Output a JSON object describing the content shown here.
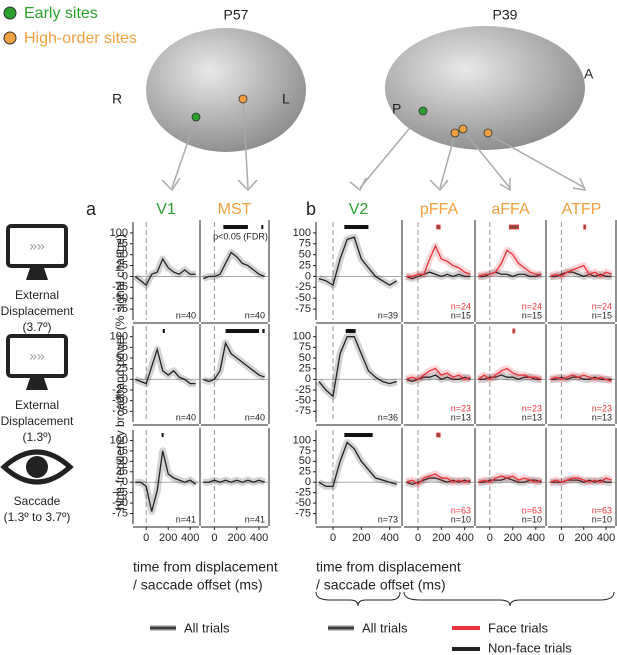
{
  "legend_top": {
    "early": "Early sites",
    "early_color": "#2ca02c",
    "high": "High-order sites",
    "high_color": "#f0a040"
  },
  "brains": {
    "left_title": "P57",
    "right_title": "P39",
    "R": "R",
    "L": "L",
    "A": "A",
    "P": "P"
  },
  "panel_labels": {
    "a": "a",
    "b": "b"
  },
  "conditions": [
    {
      "lines": [
        "External",
        "Displacement",
        "(3.7º)"
      ]
    },
    {
      "lines": [
        "External",
        "Displacement",
        "(1.3º)"
      ]
    },
    {
      "lines": [
        "Saccade",
        "(1.3º to 3.7º)"
      ]
    }
  ],
  "y_label": "high-frequency broadband power (% signal change)",
  "x_label_a": [
    "time from displacement",
    "/ saccade offset (ms)"
  ],
  "x_label_b": [
    "time from displacement",
    "/ saccade offset (ms)"
  ],
  "annotation": "p<0.05 (FDR)",
  "axes": {
    "x": [
      -100,
      -50,
      0,
      50,
      100,
      150,
      200,
      250,
      300,
      350,
      400,
      450
    ],
    "xlim": [
      -120,
      480
    ],
    "xticks": [
      0,
      200,
      400
    ],
    "ylim": [
      -100,
      125
    ],
    "yticks": [
      100,
      75,
      50,
      25,
      0,
      -25,
      -50,
      -75
    ]
  },
  "columns": [
    {
      "title": "V1",
      "color": "#2ca02c",
      "rows": [
        {
          "series": [
            {
              "name": "All trials",
              "color": "#222222",
              "values": [
                0,
                -10,
                -20,
                5,
                10,
                40,
                20,
                10,
                5,
                15,
                5,
                5
              ]
            }
          ],
          "n_labels": [
            {
              "text": "n=40",
              "color": "#222222"
            }
          ],
          "sig": []
        },
        {
          "series": [
            {
              "name": "All trials",
              "color": "#222222",
              "values": [
                0,
                -5,
                -10,
                30,
                70,
                20,
                10,
                20,
                5,
                0,
                -10,
                -10
              ]
            }
          ],
          "n_labels": [
            {
              "text": "n=40",
              "color": "#222222"
            }
          ],
          "sig": [
            [
              150,
              170
            ]
          ]
        },
        {
          "series": [
            {
              "name": "All trials",
              "color": "#222222",
              "values": [
                0,
                0,
                -10,
                -70,
                -20,
                75,
                20,
                10,
                5,
                0,
                5,
                -5
              ]
            }
          ],
          "n_labels": [
            {
              "text": "n=41",
              "color": "#222222"
            }
          ],
          "sig": [
            [
              140,
              150
            ]
          ]
        }
      ]
    },
    {
      "title": "MST",
      "color": "#f0a040",
      "rows": [
        {
          "series": [
            {
              "name": "All trials",
              "color": "#222222",
              "values": [
                -5,
                0,
                0,
                5,
                30,
                55,
                45,
                30,
                25,
                15,
                5,
                0
              ]
            }
          ],
          "n_labels": [
            {
              "text": "n=40",
              "color": "#222222"
            }
          ],
          "sig": [
            [
              80,
              300
            ],
            [
              420,
              430
            ]
          ]
        },
        {
          "series": [
            {
              "name": "All trials",
              "color": "#222222",
              "values": [
                0,
                -5,
                0,
                20,
                85,
                60,
                50,
                40,
                30,
                20,
                10,
                5
              ]
            }
          ],
          "n_labels": [
            {
              "text": "n=40",
              "color": "#222222"
            }
          ],
          "sig": [
            [
              100,
              400
            ],
            [
              430,
              450
            ]
          ]
        },
        {
          "series": [
            {
              "name": "All trials",
              "color": "#222222",
              "values": [
                0,
                0,
                5,
                0,
                5,
                0,
                5,
                0,
                5,
                0,
                5,
                0
              ]
            }
          ],
          "n_labels": [
            {
              "text": "n=41",
              "color": "#222222"
            }
          ],
          "sig": []
        }
      ]
    },
    {
      "title": "V2",
      "color": "#2ca02c",
      "rows": [
        {
          "series": [
            {
              "name": "All trials",
              "color": "#222222",
              "values": [
                -5,
                -10,
                -20,
                40,
                85,
                90,
                40,
                20,
                0,
                -10,
                -20,
                -10
              ]
            }
          ],
          "n_labels": [
            {
              "text": "n=39",
              "color": "#222222"
            }
          ],
          "sig": [
            [
              80,
              250
            ]
          ]
        },
        {
          "series": [
            {
              "name": "All trials",
              "color": "#222222",
              "values": [
                -5,
                -25,
                -40,
                60,
                100,
                100,
                60,
                20,
                5,
                -5,
                -10,
                -5
              ]
            }
          ],
          "n_labels": [
            {
              "text": "n=36",
              "color": "#222222"
            }
          ],
          "sig": [
            [
              90,
              160
            ]
          ]
        },
        {
          "series": [
            {
              "name": "All trials",
              "color": "#222222",
              "values": [
                0,
                -10,
                -10,
                50,
                95,
                80,
                50,
                30,
                10,
                5,
                0,
                -5
              ]
            }
          ],
          "n_labels": [
            {
              "text": "n=73",
              "color": "#222222"
            }
          ],
          "sig": [
            [
              80,
              280
            ]
          ]
        }
      ]
    },
    {
      "title": "pFFA",
      "color": "#f0a040",
      "rows": [
        {
          "series": [
            {
              "name": "Face trials",
              "color": "#e8333a",
              "values": [
                0,
                0,
                5,
                5,
                40,
                70,
                40,
                35,
                25,
                20,
                10,
                5
              ]
            },
            {
              "name": "Non-face trials",
              "color": "#222222",
              "values": [
                0,
                -5,
                0,
                5,
                10,
                5,
                0,
                5,
                0,
                5,
                0,
                0
              ]
            }
          ],
          "n_labels": [
            {
              "text": "n=24",
              "color": "#e8333a"
            },
            {
              "text": "n=15",
              "color": "#222222"
            }
          ],
          "sig": [
            [
              160,
              190
            ]
          ]
        },
        {
          "series": [
            {
              "name": "Face trials",
              "color": "#e8333a",
              "values": [
                0,
                5,
                0,
                10,
                20,
                25,
                10,
                15,
                5,
                10,
                0,
                5
              ]
            },
            {
              "name": "Non-face trials",
              "color": "#222222",
              "values": [
                0,
                -5,
                0,
                5,
                5,
                10,
                0,
                5,
                0,
                0,
                5,
                0
              ]
            }
          ],
          "n_labels": [
            {
              "text": "n=23",
              "color": "#e8333a"
            },
            {
              "text": "n=13",
              "color": "#222222"
            }
          ],
          "sig": []
        },
        {
          "series": [
            {
              "name": "Face trials",
              "color": "#e8333a",
              "values": [
                0,
                5,
                -5,
                10,
                15,
                20,
                10,
                10,
                0,
                5,
                0,
                5
              ]
            },
            {
              "name": "Non-face trials",
              "color": "#222222",
              "values": [
                0,
                -5,
                0,
                5,
                10,
                10,
                5,
                0,
                5,
                0,
                5,
                0
              ]
            }
          ],
          "n_labels": [
            {
              "text": "n=63",
              "color": "#e8333a"
            },
            {
              "text": "n=10",
              "color": "#222222"
            }
          ],
          "sig": [
            [
              160,
              190
            ]
          ]
        }
      ]
    },
    {
      "title": "aFFA",
      "color": "#f0a040",
      "rows": [
        {
          "series": [
            {
              "name": "Face trials",
              "color": "#e8333a",
              "values": [
                0,
                5,
                5,
                10,
                30,
                60,
                50,
                30,
                20,
                10,
                5,
                5
              ]
            },
            {
              "name": "Non-face trials",
              "color": "#222222",
              "values": [
                0,
                0,
                5,
                10,
                5,
                5,
                0,
                5,
                5,
                0,
                0,
                5
              ]
            }
          ],
          "n_labels": [
            {
              "text": "n=24",
              "color": "#e8333a"
            },
            {
              "text": "n=15",
              "color": "#222222"
            }
          ],
          "sig": [
            [
              170,
              250
            ]
          ]
        },
        {
          "series": [
            {
              "name": "Face trials",
              "color": "#e8333a",
              "values": [
                0,
                10,
                0,
                10,
                20,
                25,
                15,
                10,
                10,
                5,
                5,
                0
              ]
            },
            {
              "name": "Non-face trials",
              "color": "#222222",
              "values": [
                0,
                0,
                5,
                5,
                10,
                5,
                5,
                0,
                5,
                5,
                0,
                0
              ]
            }
          ],
          "n_labels": [
            {
              "text": "n=23",
              "color": "#e8333a"
            },
            {
              "text": "n=13",
              "color": "#222222"
            }
          ],
          "sig": [
            [
              200,
              210
            ]
          ]
        },
        {
          "series": [
            {
              "name": "Face trials",
              "color": "#e8333a",
              "values": [
                0,
                5,
                0,
                10,
                15,
                10,
                15,
                5,
                10,
                5,
                0,
                5
              ]
            },
            {
              "name": "Non-face trials",
              "color": "#222222",
              "values": [
                0,
                0,
                5,
                5,
                5,
                10,
                5,
                0,
                0,
                5,
                5,
                0
              ]
            }
          ],
          "n_labels": [
            {
              "text": "n=63",
              "color": "#e8333a"
            },
            {
              "text": "n=10",
              "color": "#222222"
            }
          ],
          "sig": []
        }
      ]
    },
    {
      "title": "ATFP",
      "color": "#f0a040",
      "rows": [
        {
          "series": [
            {
              "name": "Face trials",
              "color": "#e8333a",
              "values": [
                0,
                5,
                0,
                10,
                15,
                20,
                25,
                5,
                10,
                0,
                10,
                5
              ]
            },
            {
              "name": "Non-face trials",
              "color": "#222222",
              "values": [
                0,
                0,
                5,
                10,
                10,
                5,
                0,
                5,
                0,
                5,
                0,
                0
              ]
            }
          ],
          "n_labels": [
            {
              "text": "n=24",
              "color": "#e8333a"
            },
            {
              "text": "n=15",
              "color": "#222222"
            }
          ],
          "sig": [
            [
              200,
              210
            ]
          ]
        },
        {
          "series": [
            {
              "name": "Face trials",
              "color": "#e8333a",
              "values": [
                0,
                5,
                0,
                5,
                10,
                5,
                10,
                5,
                0,
                5,
                0,
                -5
              ]
            },
            {
              "name": "Non-face trials",
              "color": "#222222",
              "values": [
                0,
                0,
                5,
                0,
                5,
                5,
                0,
                0,
                5,
                0,
                0,
                0
              ]
            }
          ],
          "n_labels": [
            {
              "text": "n=23",
              "color": "#e8333a"
            },
            {
              "text": "n=13",
              "color": "#222222"
            }
          ],
          "sig": []
        },
        {
          "series": [
            {
              "name": "Face trials",
              "color": "#e8333a",
              "values": [
                0,
                5,
                0,
                5,
                10,
                10,
                5,
                0,
                5,
                0,
                10,
                5
              ]
            },
            {
              "name": "Non-face trials",
              "color": "#222222",
              "values": [
                0,
                0,
                0,
                5,
                5,
                5,
                0,
                5,
                0,
                5,
                0,
                0
              ]
            }
          ],
          "n_labels": [
            {
              "text": "n=63",
              "color": "#e8333a"
            },
            {
              "text": "n=10",
              "color": "#222222"
            }
          ],
          "sig": []
        }
      ]
    }
  ],
  "legend_bottom": {
    "all_a": "All trials",
    "all_b": "All trials",
    "face": "Face trials",
    "face_color": "#e8333a",
    "nonface": "Non-face trials",
    "nonface_color": "#222222"
  }
}
